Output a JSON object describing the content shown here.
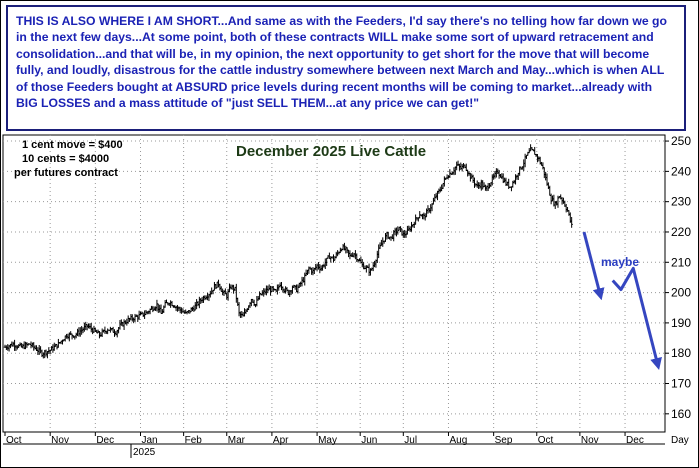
{
  "commentary": "THIS IS ALSO WHERE I AM SHORT...And same as with the Feeders, I'd say there's no telling how far down we go in the next few days...At some point, both of these contracts WILL make some sort of upward retracement and consolidation...and that will be, in my opinion, the next opportunity to get short  for the move that will become fully, and loudly, disastrous for the cattle industry somewhere between next March and May...which is when ALL of those Feeders bought at ABSURD price levels during recent months will be coming to market...already with BIG LOSSES and a mass attitude of \"just SELL THEM...at any price we can get!\"",
  "colors": {
    "commentary_text": "#1b22b5",
    "commentary_border": "#1b1f7a",
    "title": "#1d3a16",
    "bars": "#000000",
    "arrow": "#3546c0",
    "grid": "#9a9a9a"
  },
  "chart_data": {
    "type": "ohlc-bar",
    "title": "December 2025 Live Cattle",
    "contract_notes": [
      "1 cent move = $400",
      "10 cents = $4000",
      "per futures contract"
    ],
    "x_ticks": [
      "Oct",
      "Nov",
      "Dec",
      "Jan",
      "Feb",
      "Mar",
      "Apr",
      "May",
      "Jun",
      "Jul",
      "Aug",
      "Sep",
      "Oct",
      "Nov",
      "Dec"
    ],
    "x_axis_unit": "Day",
    "year_label": "2025",
    "y_ticks": [
      160,
      170,
      180,
      190,
      200,
      210,
      220,
      230,
      240,
      250
    ],
    "ylim": [
      154,
      252
    ],
    "grid": true,
    "price_axis_side": "right",
    "price_path": [
      [
        0,
        182
      ],
      [
        2,
        183
      ],
      [
        4,
        182
      ],
      [
        6,
        183
      ],
      [
        8,
        181
      ],
      [
        9,
        180
      ],
      [
        11,
        181
      ],
      [
        13,
        183
      ],
      [
        15,
        186
      ],
      [
        17,
        186
      ],
      [
        19,
        188
      ],
      [
        20,
        189
      ],
      [
        21,
        188
      ],
      [
        23,
        186
      ],
      [
        25,
        188
      ],
      [
        27,
        187
      ],
      [
        28,
        189
      ],
      [
        30,
        191
      ],
      [
        32,
        192
      ],
      [
        34,
        193
      ],
      [
        35,
        194
      ],
      [
        37,
        196
      ],
      [
        38,
        193
      ],
      [
        39,
        196
      ],
      [
        40,
        197
      ],
      [
        42,
        195
      ],
      [
        44,
        193
      ],
      [
        46,
        195
      ],
      [
        48,
        198
      ],
      [
        49,
        199
      ],
      [
        50,
        200
      ],
      [
        51,
        202
      ],
      [
        52,
        203
      ],
      [
        53,
        200
      ],
      [
        54,
        199
      ],
      [
        55,
        202
      ],
      [
        56,
        201
      ],
      [
        57,
        193
      ],
      [
        58,
        192
      ],
      [
        59,
        195
      ],
      [
        60,
        198
      ],
      [
        61,
        196
      ],
      [
        62,
        199
      ],
      [
        64,
        201
      ],
      [
        65,
        201
      ],
      [
        66,
        200
      ],
      [
        67,
        203
      ],
      [
        68,
        201
      ],
      [
        69,
        200
      ],
      [
        70,
        202
      ],
      [
        71,
        201
      ],
      [
        72,
        203
      ],
      [
        73,
        205
      ],
      [
        74,
        208
      ],
      [
        75,
        207
      ],
      [
        76,
        209
      ],
      [
        77,
        208
      ],
      [
        78,
        210
      ],
      [
        79,
        212
      ],
      [
        80,
        211
      ],
      [
        81,
        213
      ],
      [
        82,
        215
      ],
      [
        83,
        214
      ],
      [
        84,
        212
      ],
      [
        85,
        213
      ],
      [
        86,
        211
      ],
      [
        87,
        209
      ],
      [
        88,
        208
      ],
      [
        89,
        207
      ],
      [
        90,
        210
      ],
      [
        91,
        214
      ],
      [
        92,
        217
      ],
      [
        93,
        219
      ],
      [
        94,
        218
      ],
      [
        95,
        220
      ],
      [
        96,
        221
      ],
      [
        97,
        219
      ],
      [
        98,
        220
      ],
      [
        99,
        222
      ],
      [
        100,
        224
      ],
      [
        101,
        226
      ],
      [
        102,
        225
      ],
      [
        103,
        227
      ],
      [
        104,
        229
      ],
      [
        105,
        232
      ],
      [
        106,
        234
      ],
      [
        107,
        237
      ],
      [
        108,
        239
      ],
      [
        109,
        240
      ],
      [
        110,
        242
      ],
      [
        111,
        241
      ],
      [
        112,
        242
      ],
      [
        113,
        239
      ],
      [
        114,
        237
      ],
      [
        115,
        235
      ],
      [
        116,
        236
      ],
      [
        117,
        234
      ],
      [
        118,
        236
      ],
      [
        119,
        238
      ],
      [
        120,
        240
      ],
      [
        121,
        238
      ],
      [
        122,
        236
      ],
      [
        123,
        235
      ],
      [
        124,
        237
      ],
      [
        125,
        240
      ],
      [
        126,
        242
      ],
      [
        127,
        245
      ],
      [
        128,
        247
      ],
      [
        129,
        246
      ],
      [
        130,
        244
      ],
      [
        131,
        241
      ],
      [
        132,
        236
      ],
      [
        133,
        231
      ],
      [
        134,
        229
      ],
      [
        135,
        232
      ],
      [
        136,
        230
      ],
      [
        137,
        227
      ],
      [
        138,
        222
      ]
    ],
    "annotations": {
      "label": "maybe",
      "projected_path": [
        [
          141,
          220
        ],
        [
          145,
          199
        ],
        [
          148,
          204
        ],
        [
          150,
          201
        ],
        [
          153,
          208
        ],
        [
          159,
          176
        ]
      ]
    }
  }
}
